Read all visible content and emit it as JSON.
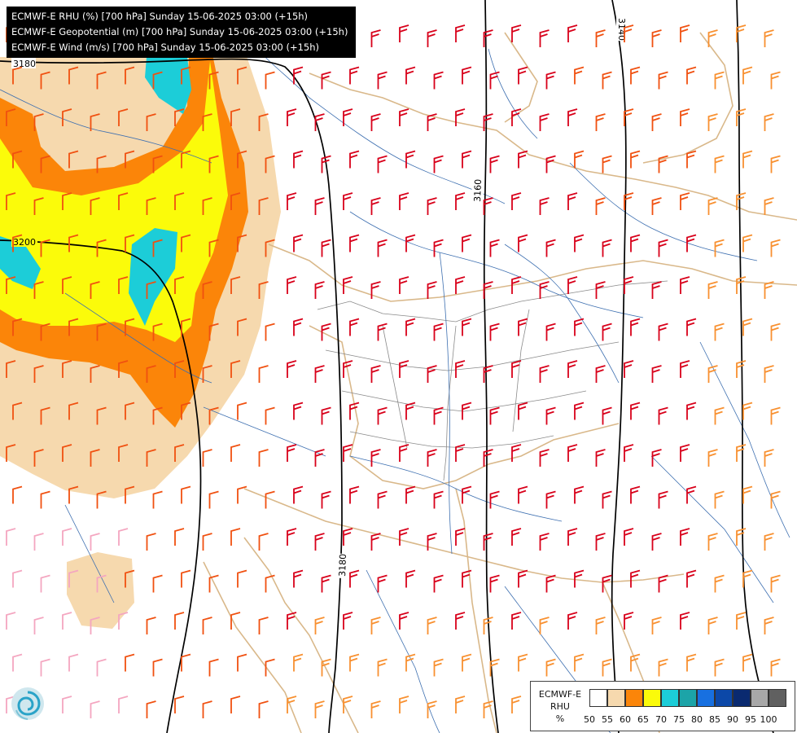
{
  "header": {
    "lines": [
      "ECMWF-E RHU (%) [700 hPa] Sunday 15-06-2025 03:00 (+15h)",
      "ECMWF-E Geopotential (m) [700 hPa] Sunday 15-06-2025 03:00 (+15h)",
      "ECMWF-E Wind (m/s) [700 hPa] Sunday 15-06-2025 03:00 (+15h)"
    ]
  },
  "contours": {
    "labels": [
      "3180",
      "3140",
      "3160",
      "3200",
      "3180"
    ]
  },
  "legend": {
    "title_line1": "ECMWF-E",
    "title_line2": "RHU",
    "title_line3": "%",
    "colors": [
      "#ffffff",
      "#f6d9ae",
      "#fb8509",
      "#fbfb0a",
      "#1ccdd8",
      "#1ca4a8",
      "#1870e0",
      "#0c48a8",
      "#0a2a70",
      "#a8a8a8",
      "#606060"
    ],
    "labels": [
      "50",
      "55",
      "60",
      "65",
      "70",
      "75",
      "80",
      "85",
      "90",
      "95",
      "100"
    ]
  },
  "logo": {
    "icon": "ecmwf-swirl-icon"
  },
  "colors": {
    "barb_strong": "#d8001a",
    "barb_mid": "#f05010",
    "barb_weak": "#f89030",
    "barb_light": "#f4a6c0",
    "river": "#3d6fb0",
    "border": "#d9b88a",
    "contour": "#000000"
  }
}
